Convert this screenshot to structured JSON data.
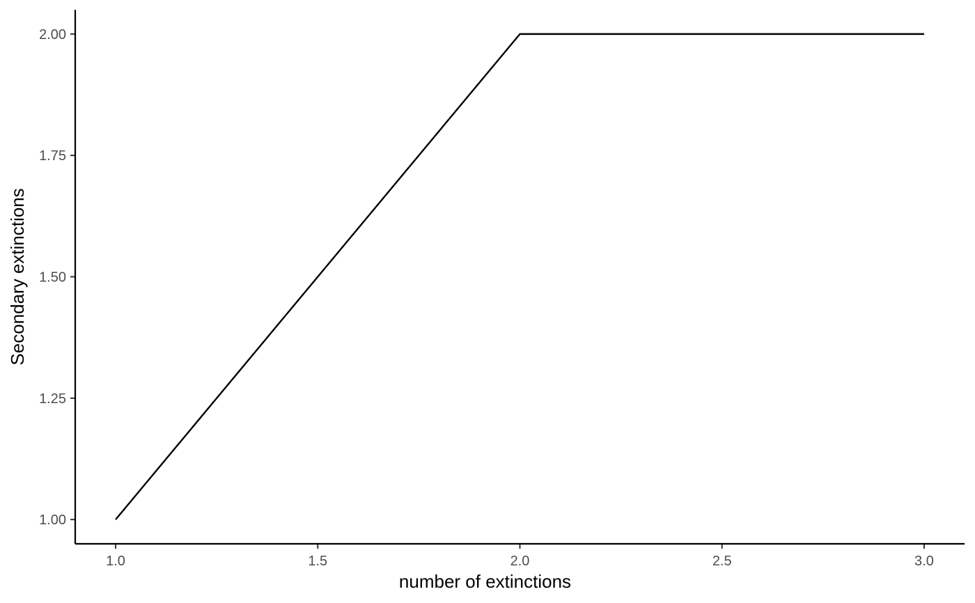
{
  "chart_data": {
    "type": "line",
    "title": "",
    "xlabel": "number of extinctions",
    "ylabel": "Secondary extinctions",
    "xlim": [
      0.9,
      3.1
    ],
    "ylim": [
      0.95,
      2.05
    ],
    "x_ticks": [
      1.0,
      1.5,
      2.0,
      2.5,
      3.0
    ],
    "x_tick_labels": [
      "1.0",
      "1.5",
      "2.0",
      "2.5",
      "3.0"
    ],
    "y_ticks": [
      1.0,
      1.25,
      1.5,
      1.75,
      2.0
    ],
    "y_tick_labels": [
      "1.00",
      "1.25",
      "1.50",
      "1.75",
      "2.00"
    ],
    "grid": false,
    "legend": "none",
    "series": [
      {
        "x": [
          1,
          2,
          3
        ],
        "y": [
          1,
          2,
          2
        ],
        "color": "#000000"
      }
    ]
  }
}
